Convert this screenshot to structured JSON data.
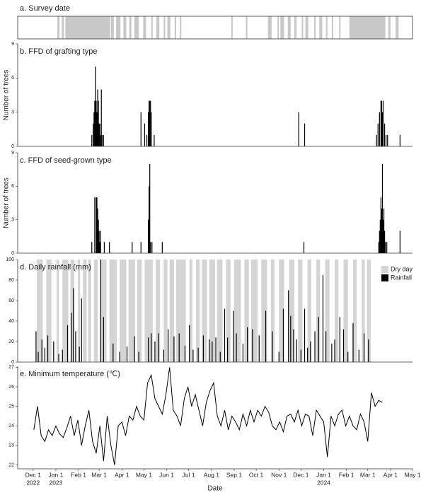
{
  "chart_data": [
    {
      "type": "span",
      "title": "a. Survey date",
      "color": "#c8c8c8",
      "xlim": [
        "2022-11-10",
        "2024-05-01"
      ],
      "x_start": [
        "2023-01-03",
        "2023-01-09",
        "2023-01-14",
        "2023-03-17",
        "2023-03-24",
        "2023-04-03",
        "2023-04-11",
        "2023-04-18",
        "2023-04-30",
        "2023-05-11",
        "2023-05-18",
        "2023-05-28",
        "2023-06-02",
        "2023-06-12",
        "2023-06-19",
        "2023-08-28",
        "2023-09-17",
        "2023-10-17",
        "2023-10-30",
        "2023-11-03",
        "2023-11-13",
        "2023-11-22",
        "2023-12-02",
        "2023-12-07",
        "2023-12-19",
        "2023-12-26",
        "2024-01-04",
        "2024-01-12",
        "2024-01-22",
        "2024-02-05",
        "2024-03-29",
        "2024-04-08"
      ],
      "x_end": [
        "2023-01-05",
        "2023-01-11",
        "2023-03-15",
        "2023-03-20",
        "2023-03-29",
        "2023-04-06",
        "2023-04-13",
        "2023-04-23",
        "2023-05-03",
        "2023-05-12",
        "2023-05-21",
        "2023-05-29",
        "2023-06-05",
        "2023-06-13",
        "2023-06-20",
        "2023-08-29",
        "2023-09-18",
        "2023-10-21",
        "2023-10-31",
        "2023-11-07",
        "2023-11-16",
        "2023-11-24",
        "2023-12-03",
        "2023-12-10",
        "2023-12-20",
        "2023-12-29",
        "2024-01-05",
        "2024-01-13",
        "2024-01-23",
        "2024-03-24",
        "2024-03-31",
        "2024-04-11"
      ]
    },
    {
      "type": "bar",
      "title": "b. FFD of grafting type",
      "ylabel": "Number of trees",
      "color": "#000000",
      "xlim": [
        "2022-11-10",
        "2024-05-01"
      ],
      "ylim": [
        0,
        9
      ],
      "yticks": [
        0,
        3,
        6,
        9
      ],
      "x": [
        "2023-02-19",
        "2023-02-21",
        "2023-02-22",
        "2023-02-23",
        "2023-02-24",
        "2023-02-25",
        "2023-02-26",
        "2023-02-27",
        "2023-02-28",
        "2023-03-01",
        "2023-03-02",
        "2023-03-03",
        "2023-03-04",
        "2023-03-05",
        "2023-03-07",
        "2023-04-27",
        "2023-05-02",
        "2023-05-05",
        "2023-05-07",
        "2023-05-08",
        "2023-05-09",
        "2023-05-10",
        "2023-05-11",
        "2023-05-15",
        "2023-11-28",
        "2023-12-06",
        "2024-03-13",
        "2024-03-15",
        "2024-03-17",
        "2024-03-19",
        "2024-03-20",
        "2024-03-21",
        "2024-03-22",
        "2024-03-24",
        "2024-03-26",
        "2024-03-28",
        "2024-04-14"
      ],
      "values": [
        1,
        2,
        3,
        4,
        7,
        4,
        3,
        5,
        4,
        2,
        2,
        1,
        5,
        1,
        1,
        3,
        2,
        1,
        3,
        4,
        4,
        4,
        3,
        1,
        3,
        2,
        1,
        2,
        3,
        4,
        4,
        3,
        4,
        2,
        1,
        1,
        1
      ]
    },
    {
      "type": "bar",
      "title": "c. FFD of seed-grown type",
      "ylabel": "Number of trees",
      "color": "#000000",
      "xlim": [
        "2022-11-10",
        "2024-05-01"
      ],
      "ylim": [
        0,
        9
      ],
      "yticks": [
        0,
        3,
        6,
        9
      ],
      "x": [
        "2023-02-19",
        "2023-02-23",
        "2023-02-25",
        "2023-02-26",
        "2023-02-27",
        "2023-02-28",
        "2023-03-01",
        "2023-03-02",
        "2023-03-03",
        "2023-03-08",
        "2023-03-15",
        "2023-04-15",
        "2023-04-27",
        "2023-05-07",
        "2023-05-08",
        "2023-05-09",
        "2023-05-10",
        "2023-05-12",
        "2023-05-26",
        "2023-12-05",
        "2024-03-16",
        "2024-03-17",
        "2024-03-18",
        "2024-03-19",
        "2024-03-20",
        "2024-03-21",
        "2024-03-22",
        "2024-03-23",
        "2024-03-24",
        "2024-03-25",
        "2024-03-27",
        "2024-04-14"
      ],
      "values": [
        1,
        5,
        5,
        5,
        4,
        3,
        2,
        1,
        2,
        1,
        1,
        1,
        1,
        3,
        6,
        8,
        1,
        1,
        1,
        1,
        1,
        2,
        3,
        5,
        4,
        8,
        3,
        4,
        2,
        1,
        1,
        2
      ]
    },
    {
      "type": "bar",
      "title": "d. Daily rainfall (mm)",
      "xlim": [
        "2022-11-10",
        "2024-05-01"
      ],
      "ylim": [
        0,
        100
      ],
      "yticks": [
        0,
        20,
        40,
        60,
        80,
        100
      ],
      "legend": "upper right",
      "series": [
        {
          "name": "Dry day",
          "color": "#d4d4d4",
          "x_start": [
            "2022-12-06",
            "2022-12-19",
            "2023-01-02",
            "2023-01-10",
            "2023-01-21",
            "2023-01-31",
            "2023-02-07",
            "2023-02-14",
            "2023-02-22",
            "2023-03-03",
            "2023-03-15",
            "2023-03-29",
            "2023-04-10",
            "2023-04-22",
            "2023-05-02",
            "2023-05-17",
            "2023-05-28",
            "2023-06-05",
            "2023-06-14",
            "2023-07-02",
            "2023-07-11",
            "2023-07-19",
            "2023-07-29",
            "2023-08-09",
            "2023-08-21",
            "2023-09-01",
            "2023-09-15",
            "2023-09-24",
            "2023-10-08",
            "2023-10-21",
            "2023-11-01",
            "2023-11-15",
            "2023-11-27",
            "2023-12-10",
            "2023-12-22",
            "2024-01-03",
            "2024-01-16",
            "2024-01-28",
            "2024-02-10",
            "2024-02-22",
            "2024-02-29"
          ],
          "x_end": [
            "2022-12-13",
            "2022-12-25",
            "2023-01-04",
            "2023-01-17",
            "2023-01-25",
            "2023-02-02",
            "2023-02-11",
            "2023-02-17",
            "2023-02-26",
            "2023-03-10",
            "2023-03-24",
            "2023-04-06",
            "2023-04-18",
            "2023-04-27",
            "2023-05-12",
            "2023-05-22",
            "2023-06-01",
            "2023-06-10",
            "2023-06-26",
            "2023-07-05",
            "2023-07-15",
            "2023-07-25",
            "2023-08-05",
            "2023-08-15",
            "2023-08-26",
            "2023-09-09",
            "2023-09-20",
            "2023-10-02",
            "2023-10-15",
            "2023-10-25",
            "2023-11-07",
            "2023-11-21",
            "2023-12-02",
            "2023-12-14",
            "2023-12-26",
            "2024-01-08",
            "2024-01-20",
            "2024-02-02",
            "2024-02-14",
            "2024-02-25",
            "2024-03-04"
          ]
        },
        {
          "name": "Rainfall",
          "color": "#000000",
          "x": [
            "2022-12-05",
            "2022-12-08",
            "2022-12-13",
            "2022-12-17",
            "2022-12-21",
            "2022-12-29",
            "2023-01-05",
            "2023-01-10",
            "2023-01-17",
            "2023-01-22",
            "2023-01-25",
            "2023-01-28",
            "2023-02-02",
            "2023-02-05",
            "2023-03-03",
            "2023-03-07",
            "2023-03-20",
            "2023-03-29",
            "2023-04-08",
            "2023-04-18",
            "2023-04-24",
            "2023-05-07",
            "2023-05-11",
            "2023-05-16",
            "2023-05-21",
            "2023-05-28",
            "2023-06-03",
            "2023-06-11",
            "2023-06-18",
            "2023-06-26",
            "2023-07-02",
            "2023-07-07",
            "2023-07-14",
            "2023-07-21",
            "2023-07-29",
            "2023-08-02",
            "2023-08-07",
            "2023-08-13",
            "2023-08-19",
            "2023-08-23",
            "2023-08-31",
            "2023-09-04",
            "2023-09-13",
            "2023-09-19",
            "2023-09-26",
            "2023-10-05",
            "2023-10-14",
            "2023-10-23",
            "2023-11-01",
            "2023-11-07",
            "2023-11-14",
            "2023-11-17",
            "2023-11-21",
            "2023-11-25",
            "2023-12-01",
            "2023-12-06",
            "2023-12-10",
            "2023-12-14",
            "2023-12-20",
            "2023-12-25",
            "2023-12-31",
            "2024-01-04",
            "2024-01-12",
            "2024-01-16",
            "2024-01-23",
            "2024-01-28",
            "2024-02-03",
            "2024-02-10",
            "2024-02-18",
            "2024-02-25",
            "2024-03-02"
          ],
          "values": [
            30,
            10,
            22,
            14,
            26,
            20,
            8,
            12,
            36,
            48,
            72,
            30,
            15,
            62,
            100,
            44,
            18,
            10,
            15,
            25,
            10,
            24,
            28,
            20,
            28,
            12,
            32,
            25,
            28,
            16,
            36,
            12,
            14,
            26,
            22,
            20,
            24,
            10,
            52,
            24,
            50,
            28,
            18,
            34,
            32,
            26,
            50,
            30,
            10,
            52,
            70,
            45,
            32,
            22,
            12,
            52,
            14,
            20,
            30,
            44,
            85,
            30,
            18,
            22,
            44,
            32,
            10,
            38,
            12,
            28,
            22
          ]
        }
      ]
    },
    {
      "type": "line",
      "title": "e. Minimum temperature (℃)",
      "xlabel": "Date",
      "color": "#000000",
      "xlim": [
        "2022-11-10",
        "2024-05-01"
      ],
      "ylim": [
        21.8,
        27.05
      ],
      "yticks": [
        22,
        23,
        24,
        25,
        26,
        27
      ],
      "xticks": [
        {
          "value": "2022-12-01",
          "label": "Dec 1"
        },
        {
          "value": "2023-01-01",
          "label": "Jan 1"
        },
        {
          "value": "2023-02-01",
          "label": "Feb 1"
        },
        {
          "value": "2023-03-01",
          "label": "Mar 1"
        },
        {
          "value": "2023-04-01",
          "label": "Apr 1"
        },
        {
          "value": "2023-05-01",
          "label": "May 1"
        },
        {
          "value": "2023-06-01",
          "label": "Jun 1"
        },
        {
          "value": "2023-07-01",
          "label": "Jul 1"
        },
        {
          "value": "2023-08-01",
          "label": "Aug 1"
        },
        {
          "value": "2023-09-01",
          "label": "Sep 1"
        },
        {
          "value": "2023-10-01",
          "label": "Oct 1"
        },
        {
          "value": "2023-11-01",
          "label": "Nov 1"
        },
        {
          "value": "2023-12-01",
          "label": "Dec 1"
        },
        {
          "value": "2024-01-01",
          "label": "Jan 1"
        },
        {
          "value": "2024-02-01",
          "label": "Feb 1"
        },
        {
          "value": "2024-03-01",
          "label": "Mar 1"
        },
        {
          "value": "2024-04-01",
          "label": "Apr 1"
        },
        {
          "value": "2024-05-01",
          "label": "May 1"
        }
      ],
      "xtick_years": [
        {
          "value": "2022-12-01",
          "label": "2022"
        },
        {
          "value": "2023-01-01",
          "label": "2023"
        },
        {
          "value": "2024-01-01",
          "label": "2024"
        }
      ],
      "x": [
        "2022-12-02",
        "2022-12-07",
        "2022-12-12",
        "2022-12-17",
        "2022-12-22",
        "2022-12-27",
        "2023-01-01",
        "2023-01-06",
        "2023-01-11",
        "2023-01-16",
        "2023-01-21",
        "2023-01-26",
        "2023-01-31",
        "2023-02-05",
        "2023-02-10",
        "2023-02-15",
        "2023-02-20",
        "2023-02-25",
        "2023-03-02",
        "2023-03-07",
        "2023-03-12",
        "2023-03-17",
        "2023-03-22",
        "2023-03-27",
        "2023-04-01",
        "2023-04-06",
        "2023-04-11",
        "2023-04-16",
        "2023-04-21",
        "2023-04-26",
        "2023-05-01",
        "2023-05-06",
        "2023-05-11",
        "2023-05-16",
        "2023-05-21",
        "2023-05-26",
        "2023-05-31",
        "2023-06-05",
        "2023-06-10",
        "2023-06-15",
        "2023-06-20",
        "2023-06-25",
        "2023-06-30",
        "2023-07-05",
        "2023-07-10",
        "2023-07-15",
        "2023-07-20",
        "2023-07-25",
        "2023-07-30",
        "2023-08-04",
        "2023-08-09",
        "2023-08-14",
        "2023-08-19",
        "2023-08-24",
        "2023-08-29",
        "2023-09-03",
        "2023-09-08",
        "2023-09-13",
        "2023-09-18",
        "2023-09-23",
        "2023-09-28",
        "2023-10-03",
        "2023-10-08",
        "2023-10-13",
        "2023-10-18",
        "2023-10-23",
        "2023-10-28",
        "2023-11-02",
        "2023-11-07",
        "2023-11-12",
        "2023-11-17",
        "2023-11-22",
        "2023-11-27",
        "2023-12-02",
        "2023-12-07",
        "2023-12-12",
        "2023-12-17",
        "2023-12-22",
        "2023-12-27",
        "2024-01-01",
        "2024-01-06",
        "2024-01-11",
        "2024-01-16",
        "2024-01-21",
        "2024-01-26",
        "2024-01-31",
        "2024-02-05",
        "2024-02-10",
        "2024-02-15",
        "2024-02-20",
        "2024-02-25",
        "2024-03-01",
        "2024-03-06",
        "2024-03-11",
        "2024-03-16",
        "2024-03-21"
      ],
      "values": [
        23.8,
        25.0,
        23.5,
        23.2,
        23.8,
        23.5,
        24.0,
        23.6,
        23.4,
        23.9,
        24.5,
        23.5,
        24.3,
        23.0,
        24.0,
        24.8,
        23.2,
        22.6,
        24.0,
        22.2,
        24.5,
        23.0,
        22.0,
        24.0,
        24.2,
        23.5,
        24.5,
        24.3,
        25.0,
        24.5,
        24.3,
        26.2,
        26.6,
        25.4,
        25.0,
        24.6,
        25.6,
        27.0,
        24.8,
        24.5,
        24.0,
        25.4,
        26.0,
        25.0,
        25.6,
        24.8,
        24.0,
        25.2,
        25.8,
        26.2,
        24.5,
        24.0,
        24.8,
        23.8,
        24.5,
        24.2,
        23.8,
        24.6,
        24.0,
        24.8,
        24.2,
        24.8,
        24.5,
        25.0,
        24.7,
        24.0,
        23.8,
        24.2,
        23.7,
        24.5,
        24.6,
        24.2,
        24.8,
        24.0,
        24.6,
        24.5,
        23.5,
        24.8,
        24.5,
        24.2,
        22.4,
        24.5,
        24.0,
        24.6,
        24.8,
        24.0,
        24.5,
        24.0,
        23.8,
        24.6,
        24.2,
        23.2,
        25.7,
        25.0,
        25.3,
        25.2
      ]
    }
  ]
}
